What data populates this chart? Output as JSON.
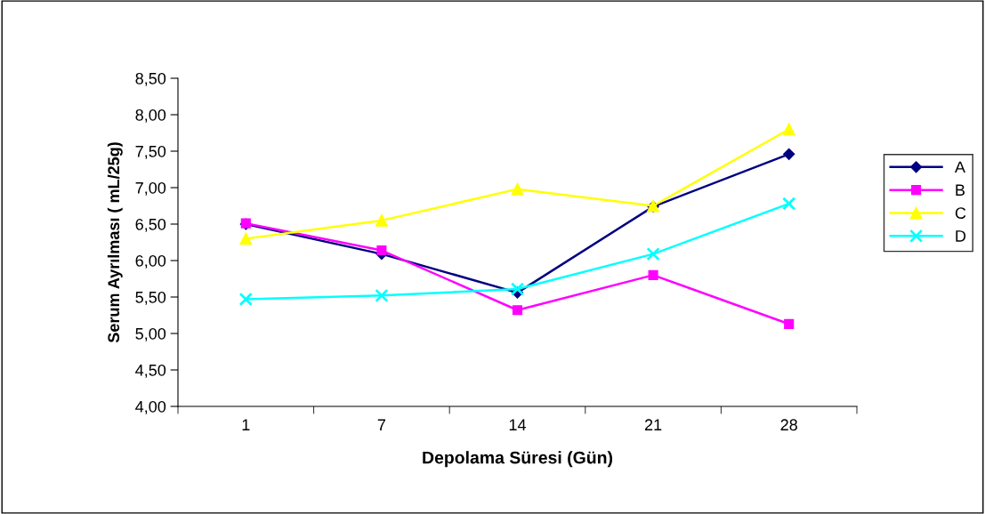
{
  "chart_data": {
    "type": "line",
    "xlabel": "Depolama Süresi (Gün)",
    "ylabel": "Serum Ayrılması ( mL/25g)",
    "categories": [
      "1",
      "7",
      "14",
      "21",
      "28"
    ],
    "series": [
      {
        "name": "A",
        "color": "#000080",
        "marker": "diamond",
        "values": [
          6.5,
          6.09,
          5.56,
          6.74,
          7.46
        ]
      },
      {
        "name": "B",
        "color": "#ff00ff",
        "marker": "square",
        "values": [
          6.51,
          6.14,
          5.32,
          5.8,
          5.13
        ]
      },
      {
        "name": "C",
        "color": "#ffff00",
        "marker": "triangle",
        "values": [
          6.3,
          6.55,
          6.98,
          6.75,
          7.8
        ]
      },
      {
        "name": "D",
        "color": "#00ffff",
        "marker": "cross",
        "values": [
          5.47,
          5.52,
          5.61,
          6.09,
          6.78
        ]
      }
    ],
    "ylim": [
      4.0,
      8.5
    ],
    "yticks": [
      {
        "value": 4.0,
        "label": "4,00"
      },
      {
        "value": 4.5,
        "label": "4,50"
      },
      {
        "value": 5.0,
        "label": "5,00"
      },
      {
        "value": 5.5,
        "label": "5,50"
      },
      {
        "value": 6.0,
        "label": "6,00"
      },
      {
        "value": 6.5,
        "label": "6,50"
      },
      {
        "value": 7.0,
        "label": "7,00"
      },
      {
        "value": 7.5,
        "label": "7,50"
      },
      {
        "value": 8.0,
        "label": "8,00"
      },
      {
        "value": 8.5,
        "label": "8,50"
      }
    ],
    "grid": false,
    "legend": "right",
    "line_style": "solid"
  }
}
